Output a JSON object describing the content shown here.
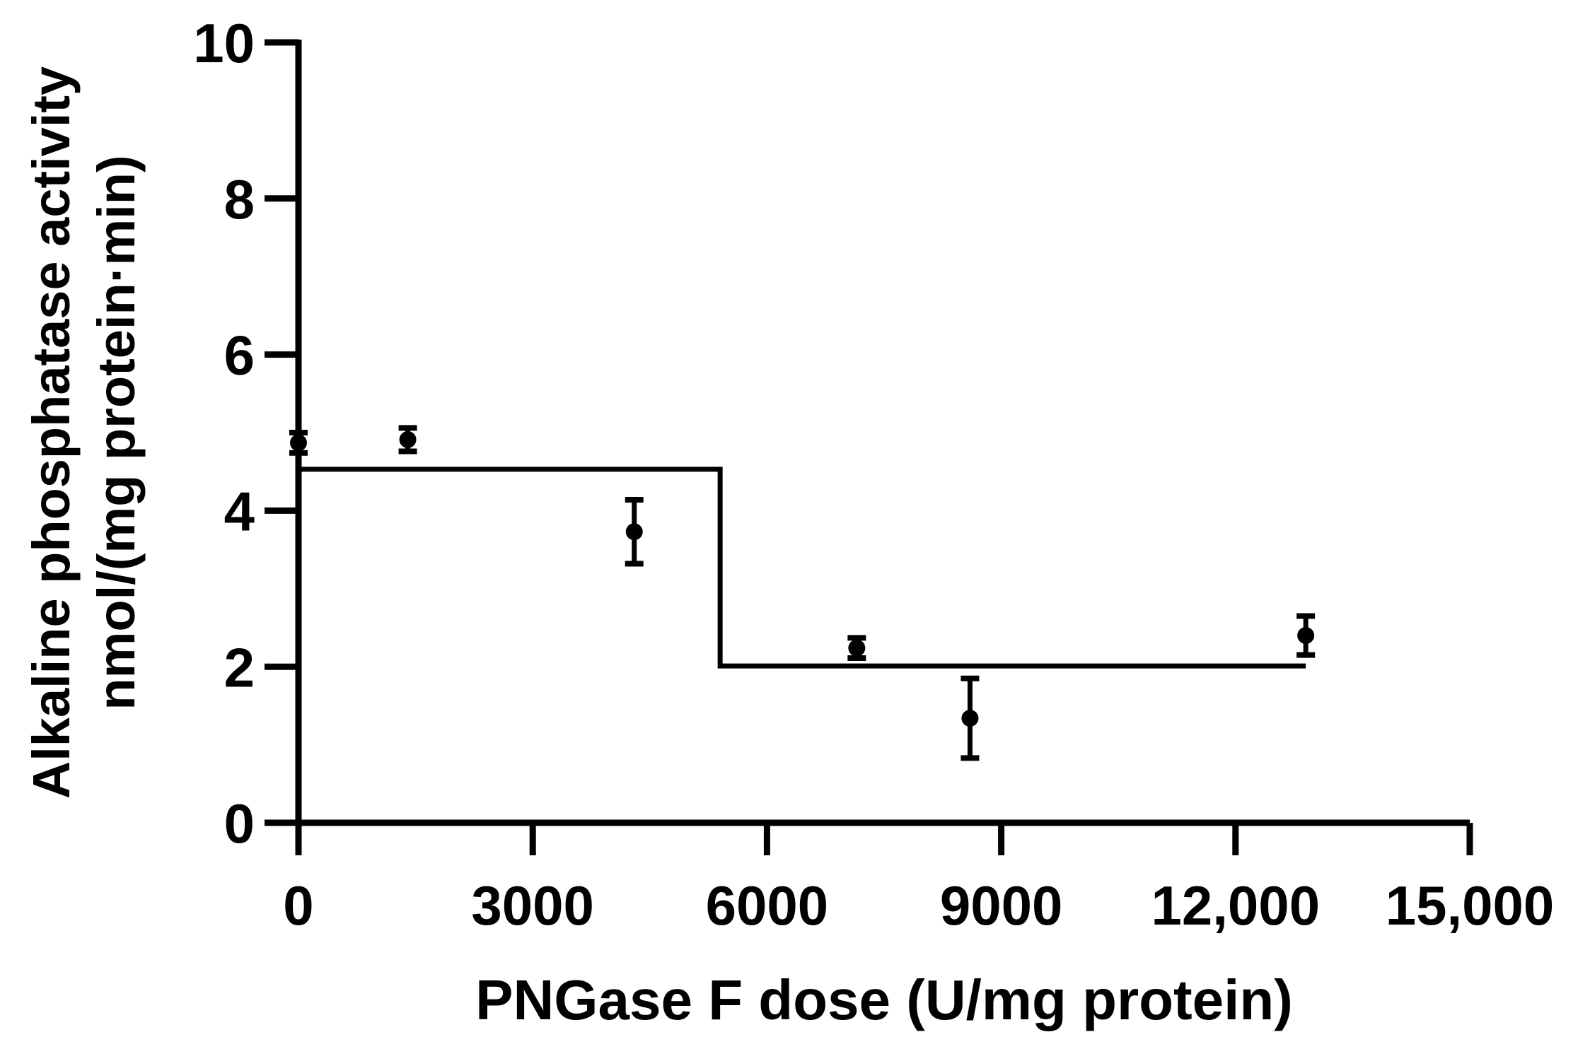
{
  "page": {
    "background": "#ffffff"
  },
  "chart_data": {
    "type": "scatter",
    "title": "",
    "xlabel": "PNGase F dose (U/mg protein)",
    "ylabel_lines": [
      "Alkaline phosphatase activity",
      "nmol/(mg protein·min)"
    ],
    "xlim": [
      0,
      15000
    ],
    "ylim": [
      0,
      10
    ],
    "grid": false,
    "legend": false,
    "colors": {
      "axis": "#000000",
      "marker": "#000000",
      "fit_line": "#000000",
      "background": "#ffffff"
    },
    "x_ticks": [
      {
        "value": 0,
        "label": "0"
      },
      {
        "value": 3000,
        "label": "3000"
      },
      {
        "value": 6000,
        "label": "6000"
      },
      {
        "value": 9000,
        "label": "9000"
      },
      {
        "value": 12000,
        "label": "12,000"
      },
      {
        "value": 15000,
        "label": "15,000"
      }
    ],
    "y_ticks": [
      {
        "value": 0,
        "label": "0"
      },
      {
        "value": 2,
        "label": "2"
      },
      {
        "value": 4,
        "label": "4"
      },
      {
        "value": 6,
        "label": "6"
      },
      {
        "value": 8,
        "label": "8"
      },
      {
        "value": 10,
        "label": "10"
      }
    ],
    "series": [
      {
        "name": "alkaline-phosphatase-activity-points",
        "type": "scatter-errorbar",
        "marker": "filled-circle",
        "points": [
          {
            "x": 0,
            "y": 4.87,
            "err": 0.13
          },
          {
            "x": 1400,
            "y": 4.91,
            "err": 0.15
          },
          {
            "x": 4300,
            "y": 3.73,
            "err": 0.41
          },
          {
            "x": 7150,
            "y": 2.24,
            "err": 0.13
          },
          {
            "x": 8600,
            "y": 1.34,
            "err": 0.51
          },
          {
            "x": 12900,
            "y": 2.4,
            "err": 0.25
          }
        ]
      },
      {
        "name": "step-fit-line",
        "type": "step-line",
        "plateaus": [
          {
            "x_start": 0,
            "x_end": 5400,
            "y": 4.53
          },
          {
            "x_start": 5400,
            "x_end": 12900,
            "y": 2.01
          }
        ]
      }
    ]
  }
}
